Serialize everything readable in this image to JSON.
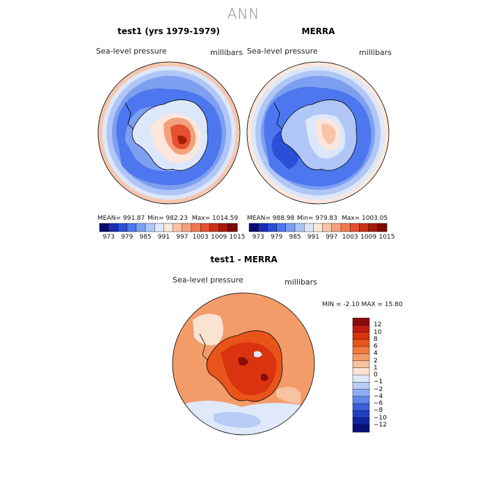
{
  "figure_title": "ANN",
  "colors": {
    "title_gray": "#888888",
    "coast": "#000000"
  },
  "chart_data": [
    {
      "type": "heatmap",
      "title": "test1 (yrs 1979-1979)",
      "variable": "Sea-level pressure",
      "units": "millibars",
      "projection": "south polar stereographic",
      "stats": {
        "mean": 991.87,
        "min": 982.23,
        "max": 1014.59
      },
      "stats_text": {
        "mean": "MEAN= 991.87",
        "min": "Min= 982.23",
        "max": "Max= 1014.59"
      },
      "colorbar": {
        "orientation": "horizontal",
        "tick_labels": [
          "973",
          "979",
          "985",
          "991",
          "997",
          "1003",
          "1009",
          "1015"
        ],
        "colors": [
          "#0a0a70",
          "#1d2fb0",
          "#2b4fd8",
          "#4d77ee",
          "#7d9ff0",
          "#afc6f6",
          "#dde7fa",
          "#fbe7dc",
          "#f8c4a8",
          "#f3a07c",
          "#ee7a53",
          "#e5502f",
          "#cc3117",
          "#a71b0a",
          "#7a0a05"
        ]
      }
    },
    {
      "type": "heatmap",
      "title": "MERRA",
      "variable": "Sea-level pressure",
      "units": "millibars",
      "projection": "south polar stereographic",
      "stats": {
        "mean": 988.98,
        "min": 979.83,
        "max": 1003.05
      },
      "stats_text": {
        "mean": "MEAN= 988.98",
        "min": "Min= 979.83",
        "max": "Max= 1003.05"
      },
      "colorbar": {
        "orientation": "horizontal",
        "tick_labels": [
          "973",
          "979",
          "985",
          "991",
          "997",
          "1003",
          "1009",
          "1015"
        ],
        "colors": [
          "#0a0a70",
          "#1d2fb0",
          "#2b4fd8",
          "#4d77ee",
          "#7d9ff0",
          "#afc6f6",
          "#dde7fa",
          "#fbe7dc",
          "#f8c4a8",
          "#f3a07c",
          "#ee7a53",
          "#e5502f",
          "#cc3117",
          "#a71b0a",
          "#7a0a05"
        ]
      }
    },
    {
      "type": "heatmap",
      "title": "test1 - MERRA",
      "variable": "Sea-level pressure",
      "units": "millibars",
      "projection": "south polar stereographic",
      "stats": {
        "min": -2.1,
        "max": 15.8
      },
      "stats_text": "MIN =   -2.10 MAX =   15.80",
      "colorbar": {
        "orientation": "vertical",
        "tick_labels": [
          "12",
          "10",
          "8",
          "6",
          "4",
          "2",
          "1",
          "0",
          "−1",
          "−2",
          "−4",
          "−6",
          "−8",
          "−10",
          "−12"
        ],
        "colors": [
          "#8a0c0c",
          "#c11a10",
          "#d9330f",
          "#e9541a",
          "#f07a3e",
          "#f39c6a",
          "#f7c3a1",
          "#fbe3d2",
          "#dfe9fa",
          "#b7cdf6",
          "#8eaef2",
          "#5f86ea",
          "#3a5fdc",
          "#2140c6",
          "#0f24a0",
          "#081278"
        ]
      }
    }
  ]
}
